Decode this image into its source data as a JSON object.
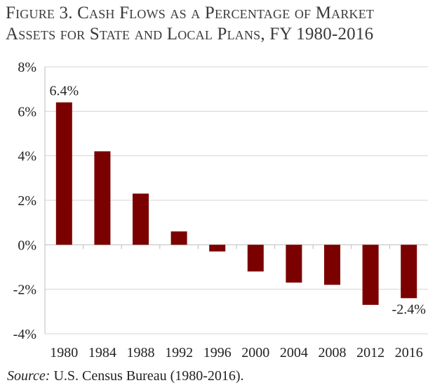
{
  "title_line1": "Figure 3. Cash Flows as a Percentage of Market",
  "title_line2": "Assets for State and Local Plans, FY 1980-2016",
  "source_label": "Source:",
  "source_text": " U.S. Census Bureau (1980-2016).",
  "chart_data": {
    "type": "bar",
    "categories": [
      "1980",
      "1984",
      "1988",
      "1992",
      "1996",
      "2000",
      "2004",
      "2008",
      "2012",
      "2016"
    ],
    "values": [
      6.4,
      4.2,
      2.3,
      0.6,
      -0.3,
      -1.2,
      -1.7,
      -1.8,
      -2.7,
      -2.4
    ],
    "data_labels": [
      {
        "index": 0,
        "text": "6.4%"
      },
      {
        "index": 9,
        "text": "-2.4%"
      }
    ],
    "ylim": [
      -4,
      8
    ],
    "yticks": [
      -4,
      -2,
      0,
      2,
      4,
      6,
      8
    ],
    "ytick_labels": [
      "-4%",
      "-2%",
      "0%",
      "2%",
      "4%",
      "6%",
      "8%"
    ],
    "bar_color": "#7b0000",
    "grid": true,
    "xlabel": "",
    "ylabel": ""
  }
}
